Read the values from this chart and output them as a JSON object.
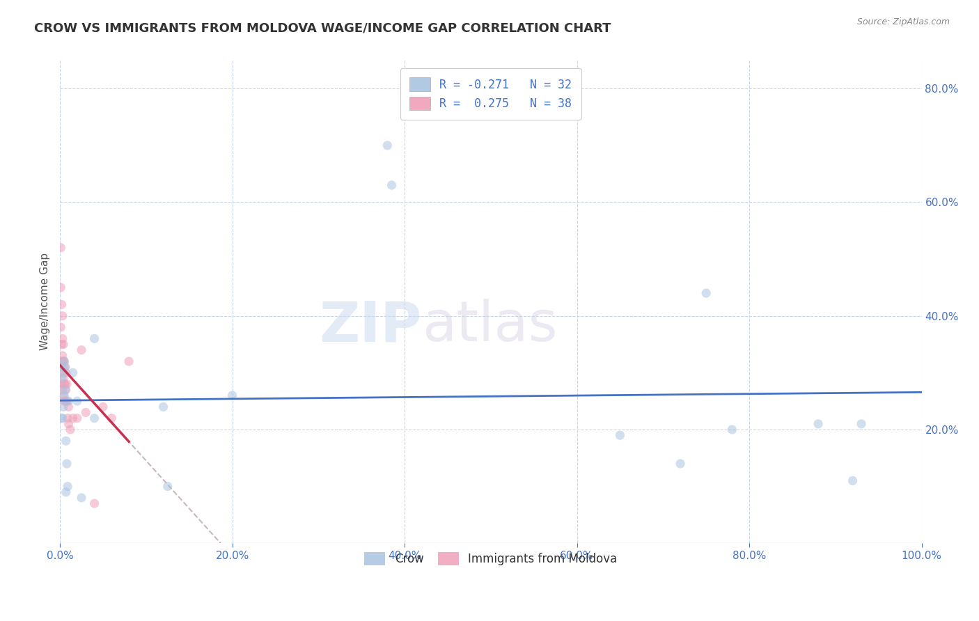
{
  "title": "CROW VS IMMIGRANTS FROM MOLDOVA WAGE/INCOME GAP CORRELATION CHART",
  "source": "Source: ZipAtlas.com",
  "ylabel": "Wage/Income Gap",
  "xlim": [
    0.0,
    1.0
  ],
  "ylim": [
    0.0,
    0.85
  ],
  "xticks": [
    0.0,
    0.2,
    0.4,
    0.6,
    0.8,
    1.0
  ],
  "xticklabels": [
    "0.0%",
    "20.0%",
    "40.0%",
    "60.0%",
    "80.0%",
    "100.0%"
  ],
  "yticks": [
    0.2,
    0.4,
    0.6,
    0.8
  ],
  "yticklabels": [
    "20.0%",
    "40.0%",
    "60.0%",
    "80.0%"
  ],
  "crow_color": "#aac4e0",
  "moldova_color": "#f0a0b8",
  "trendline_crow_color": "#4472c4",
  "trendline_moldova_color": "#c8304050",
  "trendline_dashed_color": "#c8b8c0",
  "legend_crow_label": "Crow",
  "legend_moldova_label": "Immigrants from Moldova",
  "R_crow": -0.271,
  "N_crow": 32,
  "R_moldova": 0.275,
  "N_moldova": 38,
  "crow_x": [
    0.002,
    0.002,
    0.003,
    0.003,
    0.004,
    0.004,
    0.005,
    0.005,
    0.006,
    0.006,
    0.007,
    0.007,
    0.008,
    0.009,
    0.01,
    0.015,
    0.02,
    0.025,
    0.04,
    0.04,
    0.12,
    0.125,
    0.2,
    0.38,
    0.385,
    0.65,
    0.72,
    0.75,
    0.78,
    0.88,
    0.92,
    0.93
  ],
  "crow_y": [
    0.29,
    0.22,
    0.31,
    0.22,
    0.3,
    0.24,
    0.32,
    0.26,
    0.31,
    0.27,
    0.09,
    0.18,
    0.14,
    0.1,
    0.25,
    0.3,
    0.25,
    0.08,
    0.22,
    0.36,
    0.24,
    0.1,
    0.26,
    0.7,
    0.63,
    0.19,
    0.14,
    0.44,
    0.2,
    0.21,
    0.11,
    0.21
  ],
  "moldova_x": [
    0.001,
    0.001,
    0.001,
    0.002,
    0.002,
    0.002,
    0.002,
    0.003,
    0.003,
    0.003,
    0.003,
    0.003,
    0.004,
    0.004,
    0.004,
    0.004,
    0.005,
    0.005,
    0.005,
    0.006,
    0.006,
    0.006,
    0.007,
    0.007,
    0.008,
    0.008,
    0.009,
    0.01,
    0.01,
    0.012,
    0.015,
    0.02,
    0.025,
    0.03,
    0.04,
    0.05,
    0.06,
    0.08
  ],
  "moldova_y": [
    0.52,
    0.45,
    0.38,
    0.42,
    0.35,
    0.32,
    0.28,
    0.4,
    0.36,
    0.33,
    0.3,
    0.27,
    0.35,
    0.32,
    0.29,
    0.26,
    0.32,
    0.28,
    0.25,
    0.31,
    0.28,
    0.25,
    0.3,
    0.27,
    0.28,
    0.25,
    0.22,
    0.24,
    0.21,
    0.2,
    0.22,
    0.22,
    0.34,
    0.23,
    0.07,
    0.24,
    0.22,
    0.32
  ],
  "watermark_zip": "ZIP",
  "watermark_atlas": "atlas",
  "background_color": "#ffffff",
  "grid_color": "#c8d4e8",
  "title_fontsize": 13,
  "axis_label_fontsize": 11,
  "tick_fontsize": 11,
  "legend_fontsize": 12,
  "marker_size": 90,
  "marker_alpha": 0.55
}
